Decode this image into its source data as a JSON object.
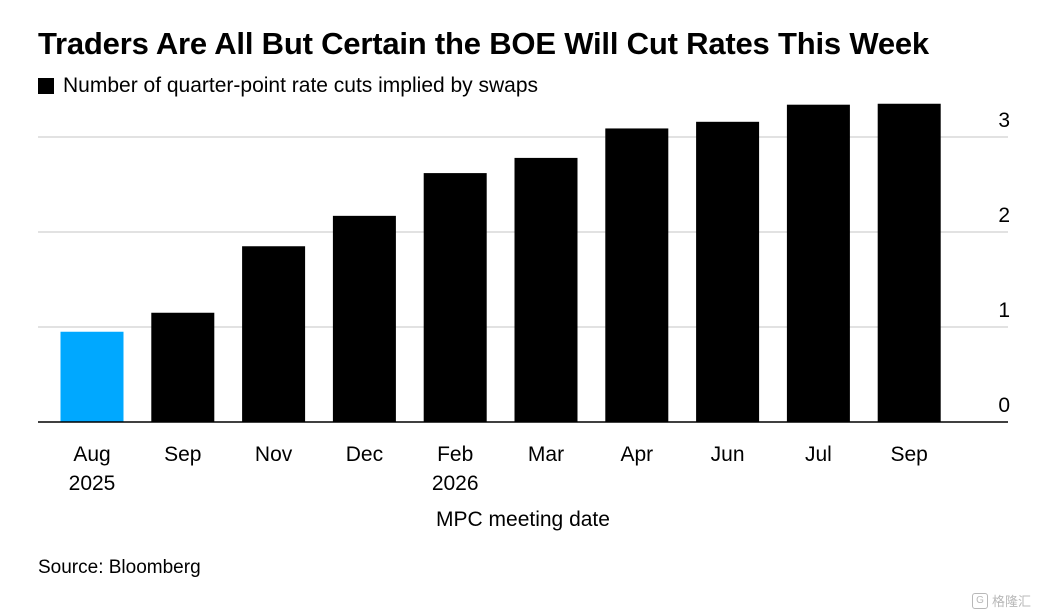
{
  "chart_data": {
    "type": "bar",
    "title": "Traders Are All But Certain the BOE Will Cut Rates This Week",
    "legend": "Number of quarter-point rate cuts implied by swaps",
    "xlabel": "MPC meeting date",
    "ylabel": "",
    "source": "Source: Bloomberg",
    "categories": [
      "Aug 2025",
      "Sep",
      "Nov",
      "Dec",
      "Feb 2026",
      "Mar",
      "Apr",
      "Jun",
      "Jul",
      "Sep"
    ],
    "tick_lines": [
      [
        "Aug",
        "2025"
      ],
      [
        "Sep"
      ],
      [
        "Nov"
      ],
      [
        "Dec"
      ],
      [
        "Feb",
        "2026"
      ],
      [
        "Mar"
      ],
      [
        "Apr"
      ],
      [
        "Jun"
      ],
      [
        "Jul"
      ],
      [
        "Sep"
      ]
    ],
    "values": [
      0.95,
      1.15,
      1.85,
      2.17,
      2.62,
      2.78,
      3.09,
      3.16,
      3.34,
      3.35
    ],
    "highlight_index": 0,
    "ylim": [
      0,
      3.5
    ],
    "yticks": [
      0,
      1,
      2,
      3
    ],
    "y_axis_side": "right",
    "grid": true,
    "legend_position": "top-left",
    "colors": {
      "bar": "#000000",
      "highlight": "#00a8ff",
      "grid": "#d9d9d9",
      "axis": "#000000"
    }
  },
  "watermark": {
    "icon": "G",
    "text": "格隆汇"
  }
}
